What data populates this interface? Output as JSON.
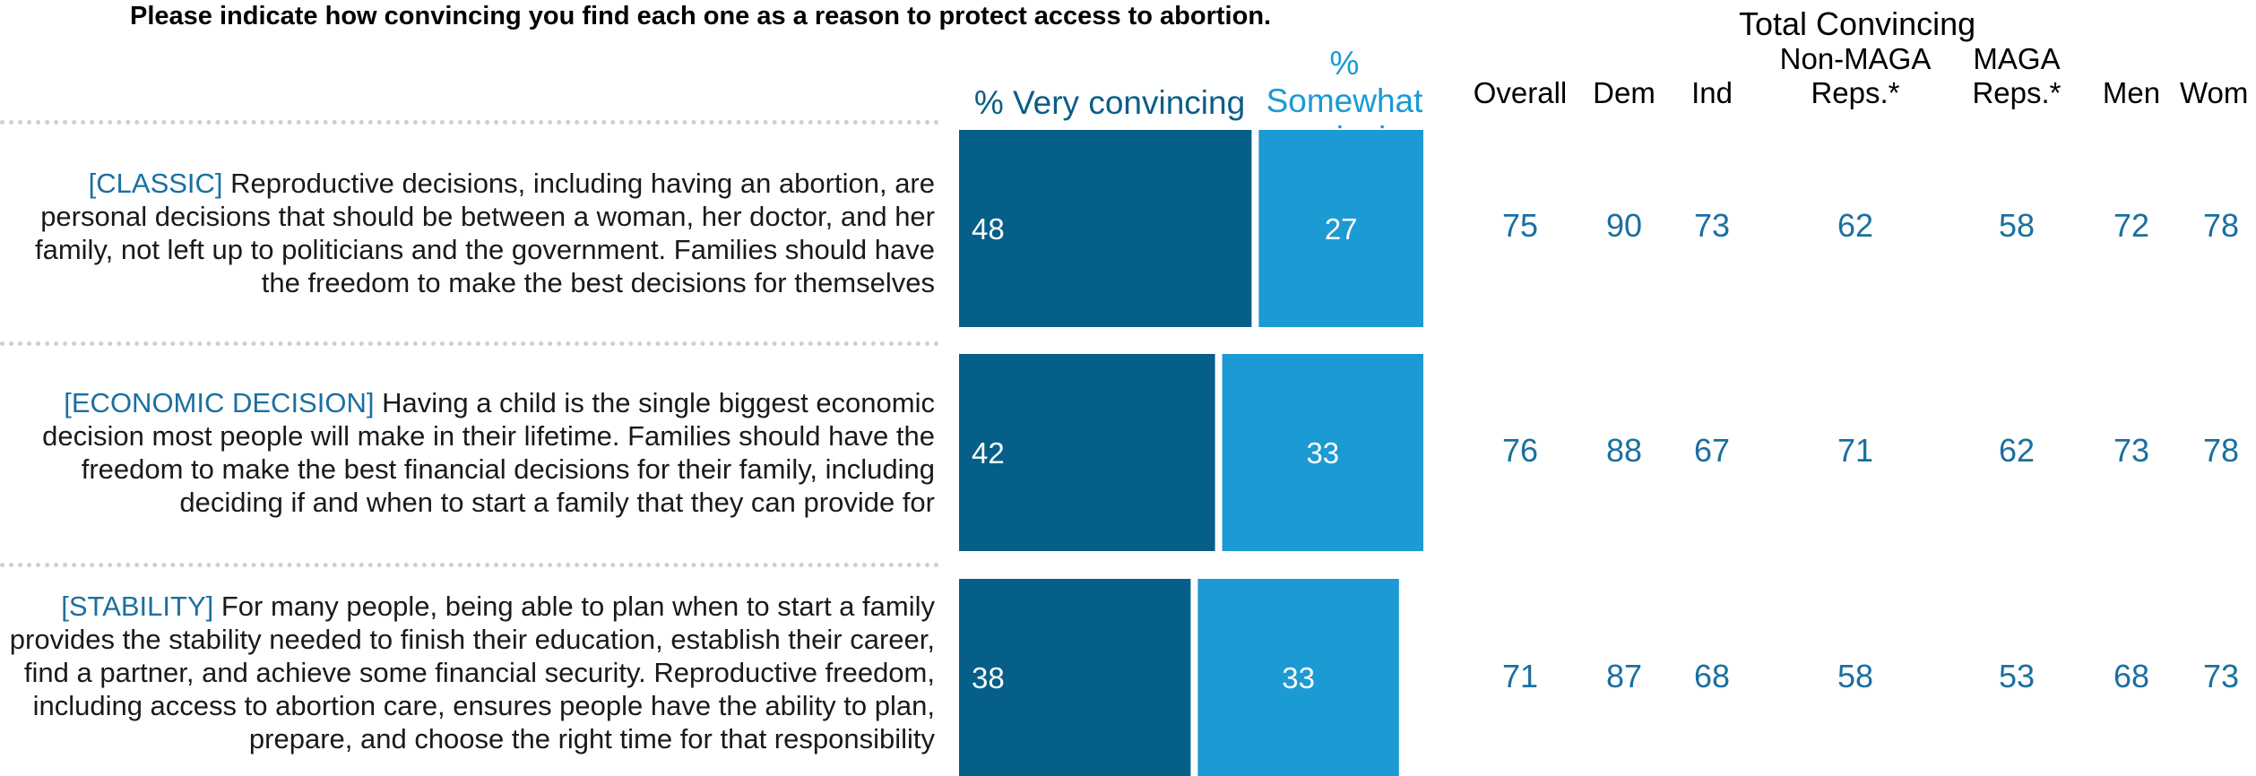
{
  "title": "Please indicate how convincing you find each one as a reason to protect access to abortion.",
  "legend": {
    "very": "% Very convincing",
    "somewhat": "% Somewhat convincing",
    "very_color": "#055f88",
    "somewhat_color": "#1b9ad3"
  },
  "table_title": "Total Convincing",
  "columns": [
    "Overall",
    "Dem",
    "Ind",
    "Non-MAGA Reps.*",
    "MAGA Reps.*",
    "Men",
    "Wom"
  ],
  "statements": [
    {
      "tag": "[CLASSIC]",
      "text": "Reproductive decisions, including having an abortion, are personal decisions that should be between a woman, her doctor, and her family, not left up to politicians and the government. Families should have the freedom to make the best decisions for themselves"
    },
    {
      "tag": "[ECONOMIC DECISION]",
      "text": "Having a child is the single biggest economic decision most people will make in their lifetime. Families should have the freedom to make the best financial decisions for their family, including deciding if and when to start a family that they can provide for"
    },
    {
      "tag": "[STABILITY]",
      "text": "For many people, being able to plan when to start a family provides the stability needed to finish their education, establish their career, find a partner, and achieve some financial security. Reproductive freedom, including access to abortion care, ensures people have the ability to plan, prepare, and choose the right time for that responsibility"
    }
  ],
  "chart_data": {
    "type": "bar",
    "orientation": "horizontal",
    "stacked": true,
    "categories": [
      "[CLASSIC]",
      "[ECONOMIC DECISION]",
      "[STABILITY]"
    ],
    "series": [
      {
        "name": "% Very convincing",
        "values": [
          48,
          42,
          38
        ]
      },
      {
        "name": "% Somewhat convincing",
        "values": [
          27,
          33,
          33
        ]
      }
    ],
    "xlim": [
      0,
      75
    ],
    "table": {
      "title": "Total Convincing",
      "columns": [
        "Overall",
        "Dem",
        "Ind",
        "Non-MAGA Reps.*",
        "MAGA Reps.*",
        "Men",
        "Wom"
      ],
      "rows": [
        [
          75,
          90,
          73,
          62,
          58,
          72,
          78
        ],
        [
          76,
          88,
          67,
          71,
          62,
          73,
          78
        ],
        [
          71,
          87,
          68,
          58,
          53,
          68,
          73
        ]
      ]
    }
  }
}
